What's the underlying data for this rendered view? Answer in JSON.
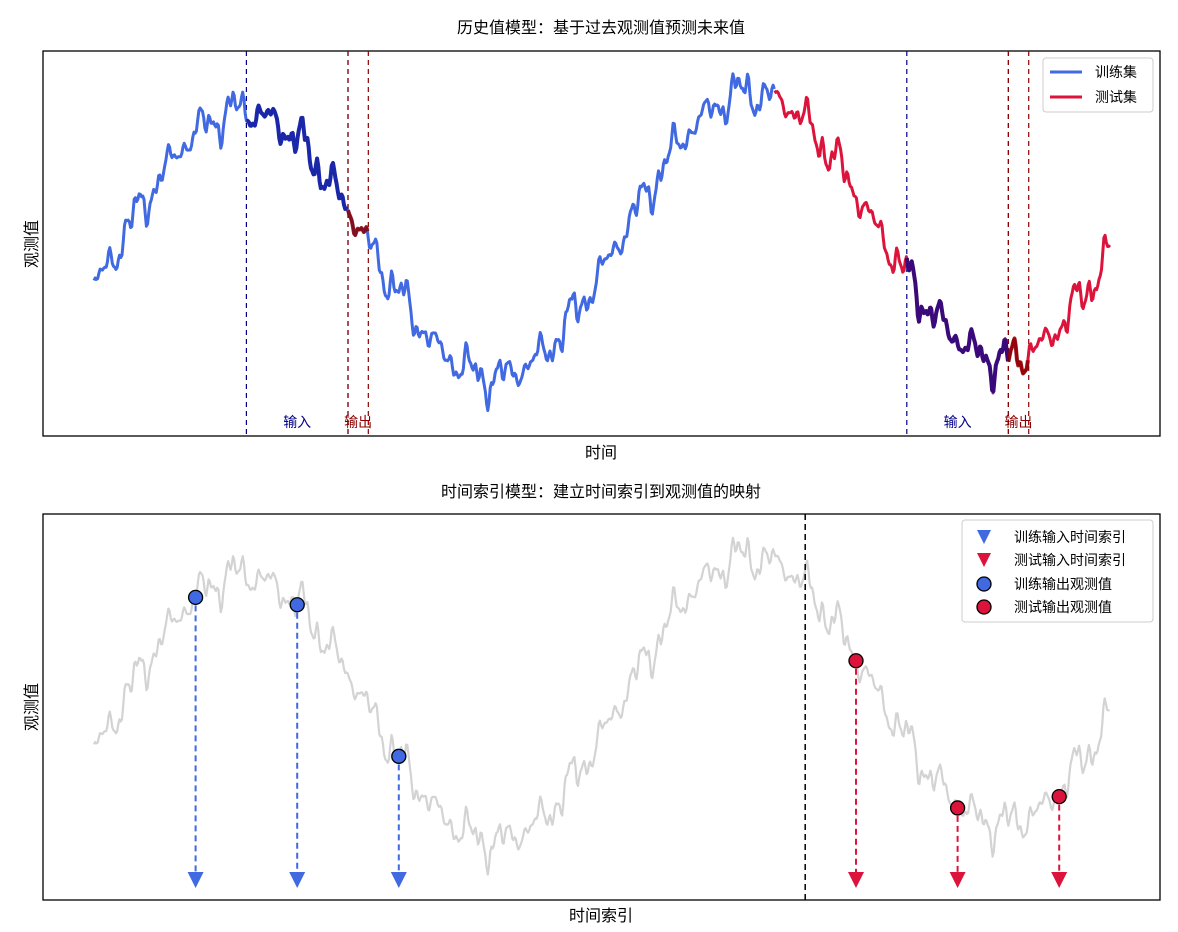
{
  "colors": {
    "train": "#4169E1",
    "test": "#DC143C",
    "input_window": "#00008B",
    "output_window": "#8B0000",
    "window_input_train": "#1a27a8",
    "window_input_test": "#3b0a7a",
    "background_series": "#d3d3d3",
    "split_line": "#000000"
  },
  "chart_data": [
    {
      "type": "line",
      "title": "历史值模型：基于过去观测值预测未来值",
      "xlabel": "时间",
      "ylabel": "观测值",
      "legend_position": "top-right",
      "x_range": [
        0,
        100
      ],
      "grid": false,
      "series": [
        {
          "name": "训练集",
          "color_key": "train",
          "x_range": [
            0,
            67
          ]
        },
        {
          "name": "测试集",
          "color_key": "test",
          "x_range": [
            67,
            100
          ]
        }
      ],
      "windows": [
        {
          "input_range": [
            15,
            25
          ],
          "output_range": [
            25,
            27
          ],
          "input_label": "输入",
          "output_label": "输出"
        },
        {
          "input_range": [
            80,
            90
          ],
          "output_range": [
            90,
            92
          ],
          "input_label": "输入",
          "output_label": "输出"
        }
      ]
    },
    {
      "type": "scatter",
      "title": "时间索引模型：建立时间索引到观测值的映射",
      "xlabel": "时间索引",
      "ylabel": "观测值",
      "legend_position": "top-right",
      "x_range": [
        0,
        100
      ],
      "split_x": 70,
      "series": [
        {
          "name": "训练输入时间索引",
          "marker": "triangle-down",
          "color_key": "train"
        },
        {
          "name": "测试输入时间索引",
          "marker": "triangle-down",
          "color_key": "test"
        },
        {
          "name": "训练输出观测值",
          "marker": "circle",
          "color_key": "train",
          "x": [
            10,
            20,
            30
          ]
        },
        {
          "name": "测试输出观测值",
          "marker": "circle",
          "color_key": "test",
          "x": [
            75,
            85,
            95
          ]
        }
      ]
    }
  ]
}
